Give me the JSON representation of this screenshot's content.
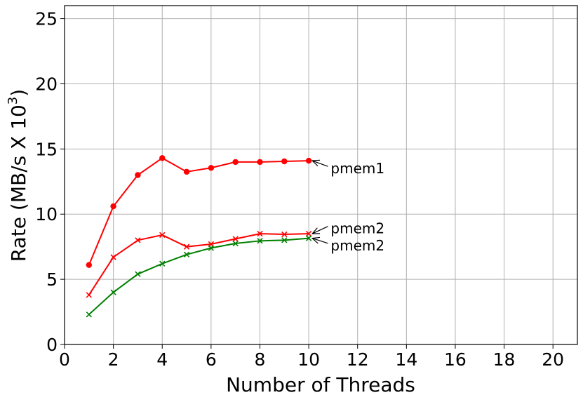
{
  "chart_data": {
    "type": "line",
    "xlabel": "Number of Threads",
    "ylabel": "Rate (MB/s X 10",
    "ylabel_sup": "3",
    "ylabel_tail": ")",
    "xlim": [
      0,
      21
    ],
    "ylim": [
      0,
      26
    ],
    "xticks": [
      0,
      2,
      4,
      6,
      8,
      10,
      12,
      14,
      16,
      18,
      20
    ],
    "yticks": [
      0,
      5,
      10,
      15,
      20,
      25
    ],
    "grid": true,
    "x": [
      1,
      2,
      3,
      4,
      5,
      6,
      7,
      8,
      9,
      10
    ],
    "series": [
      {
        "color": "#ff0000",
        "marker": "circle",
        "values": [
          6.1,
          10.6,
          13.0,
          14.3,
          13.25,
          13.55,
          14.0,
          14.0,
          14.05,
          14.1
        ]
      },
      {
        "color": "#ff0000",
        "marker": "x",
        "values": [
          3.8,
          6.7,
          8.0,
          8.4,
          7.5,
          7.7,
          8.1,
          8.5,
          8.45,
          8.5
        ]
      },
      {
        "color": "#008000",
        "marker": "x",
        "values": [
          2.3,
          4.0,
          5.4,
          6.2,
          6.9,
          7.4,
          7.75,
          7.95,
          8.0,
          8.15
        ]
      }
    ],
    "annotations": [
      {
        "text": "pmem1",
        "x": 10,
        "y": 14.1,
        "text_x": 10.9,
        "text_y": 13.5
      },
      {
        "text": "pmem2",
        "x": 10,
        "y": 8.5,
        "text_x": 10.9,
        "text_y": 8.9
      },
      {
        "text": "pmem2",
        "x": 10,
        "y": 8.15,
        "text_x": 10.9,
        "text_y": 7.6
      }
    ]
  }
}
